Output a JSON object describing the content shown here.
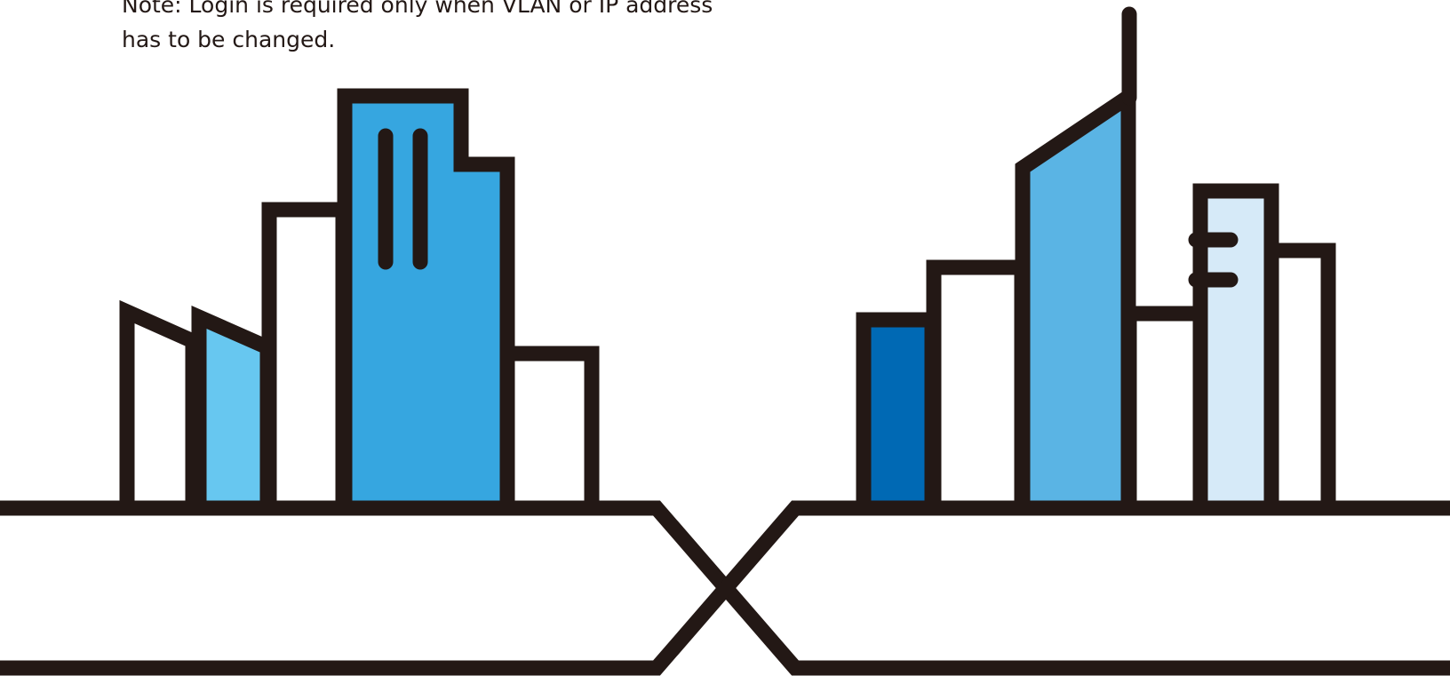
{
  "note": {
    "line1": "Note: Login is required only when VLAN or IP address",
    "line2": "has to be changed."
  },
  "illustration": {
    "subject": "city-skyline-network-illustration",
    "colors": {
      "outline": "#231815",
      "blue_dark": "#0069b4",
      "blue_main": "#36a6e0",
      "blue_medium": "#5ab4e4",
      "blue_light": "#67c7f0",
      "blue_pale": "#d6eaf8",
      "white": "#ffffff"
    }
  }
}
